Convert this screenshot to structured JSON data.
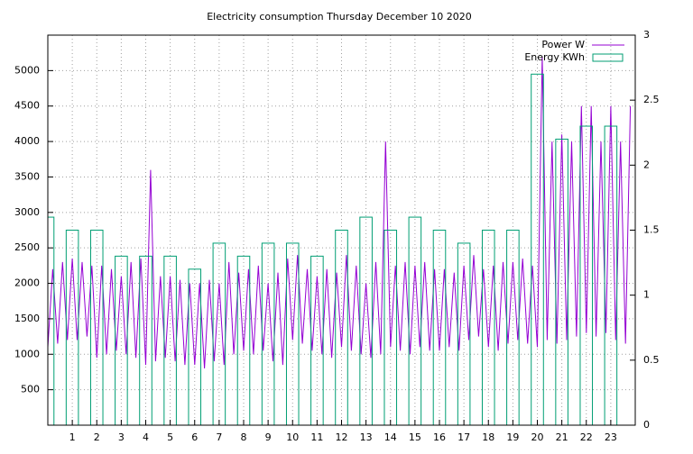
{
  "chart_data": {
    "type": "line+boxes",
    "title": "Electricity consumption Thursday December 10 2020",
    "xlim": [
      0,
      24
    ],
    "xticks": [
      1,
      2,
      3,
      4,
      5,
      6,
      7,
      8,
      9,
      10,
      11,
      12,
      13,
      14,
      15,
      16,
      17,
      18,
      19,
      20,
      21,
      22,
      23
    ],
    "ylim": [
      0,
      5500
    ],
    "yticks": [
      500,
      1000,
      1500,
      2000,
      2500,
      3000,
      3500,
      4000,
      4500,
      5000
    ],
    "y2lim": [
      0,
      3
    ],
    "y2ticks": [
      0,
      0.5,
      1,
      1.5,
      2,
      2.5,
      3
    ],
    "grid": true,
    "legend": "top-right",
    "series": [
      {
        "name": "Power W",
        "color": "#9400d3",
        "kind": "line",
        "x": [
          0,
          0.2,
          0.4,
          0.6,
          0.8,
          1,
          1.2,
          1.4,
          1.6,
          1.8,
          2,
          2.2,
          2.4,
          2.6,
          2.8,
          3,
          3.2,
          3.4,
          3.6,
          3.8,
          4,
          4.2,
          4.4,
          4.6,
          4.8,
          5,
          5.2,
          5.4,
          5.6,
          5.8,
          6,
          6.2,
          6.4,
          6.6,
          6.8,
          7,
          7.2,
          7.4,
          7.6,
          7.8,
          8,
          8.2,
          8.4,
          8.6,
          8.8,
          9,
          9.2,
          9.4,
          9.6,
          9.8,
          10,
          10.2,
          10.4,
          10.6,
          10.8,
          11,
          11.2,
          11.4,
          11.6,
          11.8,
          12,
          12.2,
          12.4,
          12.6,
          12.8,
          13,
          13.2,
          13.4,
          13.6,
          13.8,
          14,
          14.2,
          14.4,
          14.6,
          14.8,
          15,
          15.2,
          15.4,
          15.6,
          15.8,
          16,
          16.2,
          16.4,
          16.6,
          16.8,
          17,
          17.2,
          17.4,
          17.6,
          17.8,
          18,
          18.2,
          18.4,
          18.6,
          18.8,
          19,
          19.2,
          19.4,
          19.6,
          19.8,
          20,
          20.2,
          20.4,
          20.6,
          20.8,
          21,
          21.2,
          21.4,
          21.6,
          21.8,
          22,
          22.2,
          22.4,
          22.6,
          22.8,
          23,
          23.2,
          23.4,
          23.6,
          23.8
        ],
        "values": [
          1100,
          2200,
          1150,
          2300,
          1200,
          2350,
          1200,
          2300,
          1250,
          2250,
          950,
          2250,
          1000,
          2200,
          1050,
          2100,
          1000,
          2300,
          950,
          2350,
          850,
          3600,
          900,
          2100,
          950,
          2100,
          900,
          2050,
          850,
          2000,
          850,
          2000,
          800,
          2050,
          900,
          2000,
          850,
          2300,
          1000,
          2150,
          1050,
          2200,
          1000,
          2250,
          1050,
          2000,
          900,
          2150,
          850,
          2350,
          1200,
          2400,
          1150,
          2200,
          1050,
          2100,
          1000,
          2200,
          950,
          2150,
          1100,
          2400,
          1050,
          2250,
          1000,
          2000,
          950,
          2300,
          1000,
          4000,
          1100,
          2250,
          1050,
          2300,
          1000,
          2250,
          1100,
          2300,
          1050,
          2200,
          1050,
          2200,
          1100,
          2150,
          1050,
          2250,
          1200,
          2400,
          1250,
          2200,
          1100,
          2250,
          1050,
          2300,
          1150,
          2300,
          1200,
          2350,
          1150,
          2250,
          1100,
          5200,
          1200,
          4000,
          1150,
          4100,
          1200,
          4000,
          1250,
          4500,
          1300,
          4500,
          1250,
          4000,
          1300,
          4500,
          1200,
          4000,
          1150,
          4500
        ]
      },
      {
        "name": "Energy KWh",
        "color": "#009e73",
        "kind": "boxes",
        "axis": "y2",
        "x": [
          0,
          1,
          2,
          3,
          4,
          5,
          6,
          7,
          8,
          9,
          10,
          11,
          12,
          13,
          14,
          15,
          16,
          17,
          18,
          19,
          20,
          21,
          22,
          23
        ],
        "values": [
          1.6,
          1.5,
          1.5,
          1.3,
          1.3,
          1.3,
          1.2,
          1.4,
          1.3,
          1.4,
          1.4,
          1.3,
          1.5,
          1.6,
          1.5,
          1.6,
          1.5,
          1.4,
          1.5,
          1.5,
          2.7,
          2.2,
          2.3,
          2.3
        ]
      }
    ]
  }
}
